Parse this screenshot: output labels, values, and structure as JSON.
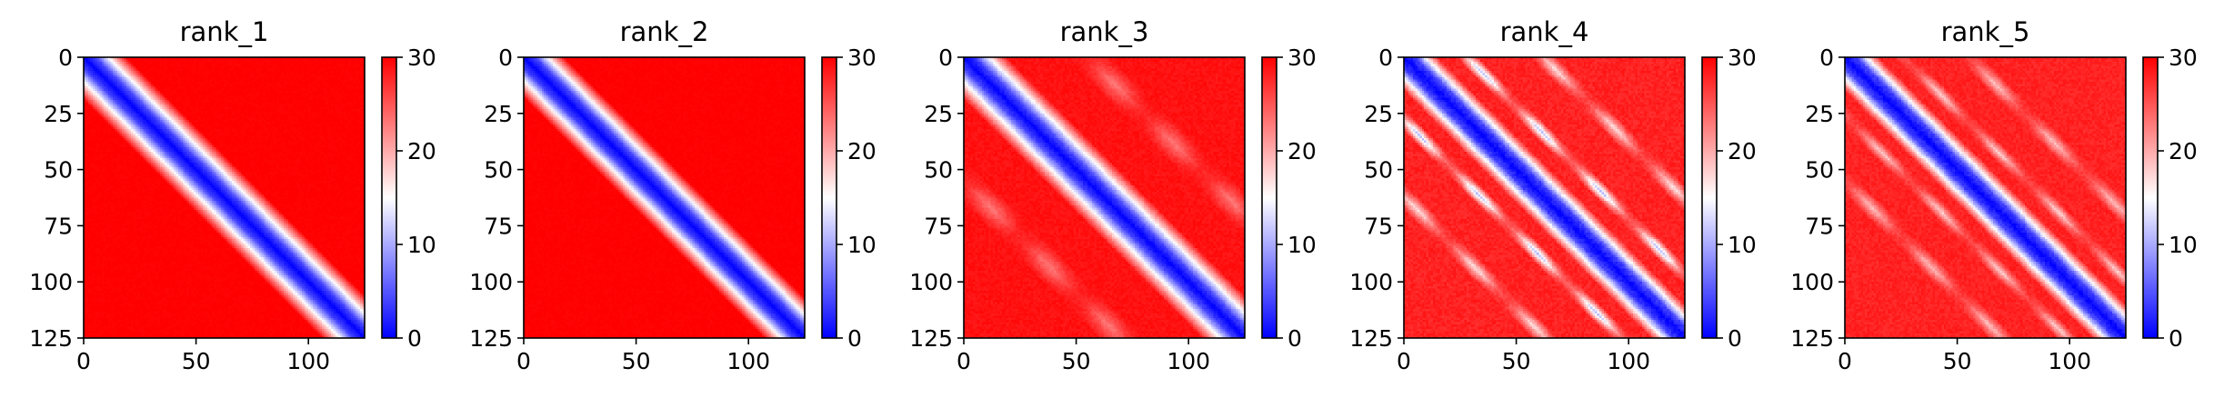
{
  "chart_data": [
    {
      "type": "heatmap",
      "title": "rank_1",
      "x_ticks": [
        0,
        50,
        100
      ],
      "y_ticks": [
        0,
        25,
        50,
        75,
        100,
        125
      ],
      "xlim": [
        0,
        125
      ],
      "ylim": [
        125,
        0
      ],
      "colorbar": {
        "ticks": [
          0,
          10,
          20,
          30
        ],
        "vmin": 0,
        "vmax": 30,
        "colormap": "bwr"
      },
      "pattern": {
        "diagonal_value": 0,
        "diagonal_width": 5,
        "ramp_width": 14,
        "background_value": 30,
        "secondary_bands": [],
        "noise": 0.04,
        "seed": 11
      }
    },
    {
      "type": "heatmap",
      "title": "rank_2",
      "x_ticks": [
        0,
        50,
        100
      ],
      "y_ticks": [
        0,
        25,
        50,
        75,
        100,
        125
      ],
      "xlim": [
        0,
        125
      ],
      "ylim": [
        125,
        0
      ],
      "colorbar": {
        "ticks": [
          0,
          10,
          20,
          30
        ],
        "vmin": 0,
        "vmax": 30,
        "colormap": "bwr"
      },
      "pattern": {
        "diagonal_value": 0,
        "diagonal_width": 5,
        "ramp_width": 13,
        "background_value": 30,
        "secondary_bands": [],
        "noise": 0.04,
        "seed": 23
      }
    },
    {
      "type": "heatmap",
      "title": "rank_3",
      "x_ticks": [
        0,
        50,
        100
      ],
      "y_ticks": [
        0,
        25,
        50,
        75,
        100,
        125
      ],
      "xlim": [
        0,
        125
      ],
      "ylim": [
        125,
        0
      ],
      "colorbar": {
        "ticks": [
          0,
          10,
          20,
          30
        ],
        "vmin": 0,
        "vmax": 30,
        "colormap": "bwr"
      },
      "pattern": {
        "diagonal_value": 0,
        "diagonal_width": 5,
        "ramp_width": 14,
        "background_value": 29,
        "secondary_bands": [
          {
            "offset": 55,
            "value": 23,
            "width": 10
          }
        ],
        "noise": 0.08,
        "seed": 37
      }
    },
    {
      "type": "heatmap",
      "title": "rank_4",
      "x_ticks": [
        0,
        50,
        100
      ],
      "y_ticks": [
        0,
        25,
        50,
        75,
        100,
        125
      ],
      "xlim": [
        0,
        125
      ],
      "ylim": [
        125,
        0
      ],
      "colorbar": {
        "ticks": [
          0,
          10,
          20,
          30
        ],
        "vmin": 0,
        "vmax": 30,
        "colormap": "bwr"
      },
      "pattern": {
        "diagonal_value": 0,
        "diagonal_width": 5,
        "ramp_width": 10,
        "background_value": 28,
        "secondary_bands": [
          {
            "offset": 28,
            "value": 11,
            "width": 5
          },
          {
            "offset": 62,
            "value": 17,
            "width": 6
          }
        ],
        "noise": 0.12,
        "seed": 41
      }
    },
    {
      "type": "heatmap",
      "title": "rank_5",
      "x_ticks": [
        0,
        50,
        100
      ],
      "y_ticks": [
        0,
        25,
        50,
        75,
        100,
        125
      ],
      "xlim": [
        0,
        125
      ],
      "ylim": [
        125,
        0
      ],
      "colorbar": {
        "ticks": [
          0,
          10,
          20,
          30
        ],
        "vmin": 0,
        "vmax": 30,
        "colormap": "bwr"
      },
      "pattern": {
        "diagonal_value": 0,
        "diagonal_width": 5,
        "ramp_width": 10,
        "background_value": 28,
        "secondary_bands": [
          {
            "offset": 26,
            "value": 18,
            "width": 5
          },
          {
            "offset": 55,
            "value": 19,
            "width": 6
          }
        ],
        "noise": 0.11,
        "seed": 53
      }
    }
  ]
}
